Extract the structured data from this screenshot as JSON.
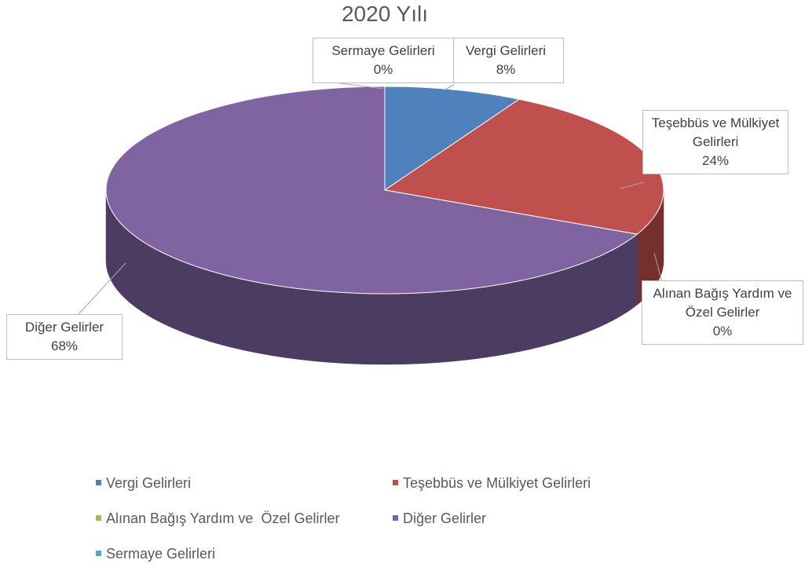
{
  "chart_data": {
    "type": "pie",
    "title": "2020 Yılı",
    "categories": [
      "Vergi Gelirleri",
      "Teşebbüs ve Mülkiyet Gelirleri",
      "Alınan Bağış Yardım ve  Özel Gelirler",
      "Diğer Gelirler",
      "Sermaye Gelirleri"
    ],
    "values": [
      8,
      24,
      0,
      68,
      0
    ],
    "value_labels": [
      "8%",
      "24%",
      "0%",
      "68%",
      "0%"
    ],
    "colors": [
      "#4f81bd",
      "#c0504d",
      "#9bbb59",
      "#8064a2",
      "#4bacc6"
    ],
    "legend": "bottom"
  }
}
